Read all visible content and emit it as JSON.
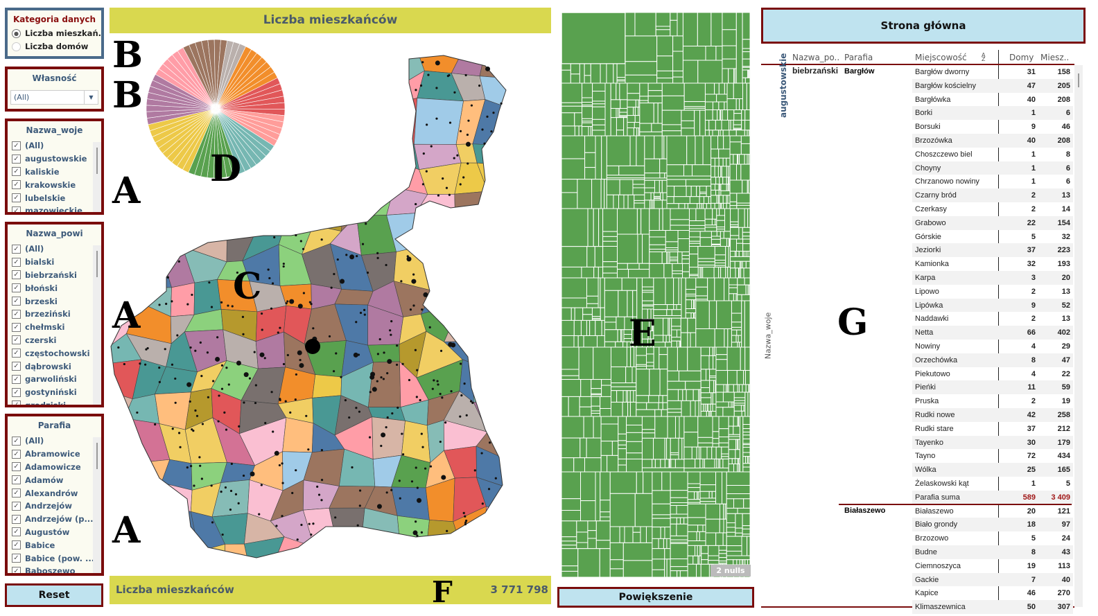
{
  "annotations": {
    "a1": "A",
    "a2": "A",
    "a3": "A",
    "b1": "B",
    "b2": "B",
    "c": "C",
    "d": "D",
    "e": "E",
    "f": "F",
    "g": "G"
  },
  "kategoria": {
    "title": "Kategoria danych",
    "options": [
      "Liczba mieszkań...",
      "Liczba domów"
    ],
    "selected": 0
  },
  "wlasnosc": {
    "title": "Własność",
    "value": "(All)"
  },
  "woje": {
    "title": "Nazwa_woje",
    "items": [
      "(All)",
      "augustowskie",
      "kaliskie",
      "krakowskie",
      "lubelskie",
      "mazowieckie"
    ]
  },
  "powi": {
    "title": "Nazwa_powi",
    "items": [
      "(All)",
      "bialski",
      "biebrzański",
      "błoński",
      "brzeski",
      "brzeziński",
      "chełmski",
      "czerski",
      "częstochowski",
      "dąbrowski",
      "garwoliński",
      "gostyniński",
      "grodziski"
    ]
  },
  "parafia": {
    "title": "Parafia",
    "items": [
      "(All)",
      "Abramowice",
      "Adamowicze",
      "Adamów",
      "Alexandrów",
      "Andrzejów",
      "Andrzejów (p...",
      "Augustów",
      "Babice",
      "Babice (pow. ...",
      "Baboszewo"
    ]
  },
  "reset_label": "Reset",
  "center": {
    "title": "Liczba mieszkańców",
    "footer_label": "Liczba mieszkańców",
    "footer_value": "3 771 798"
  },
  "treemap": {
    "nulls": "2 nulls",
    "color": "#59a14f"
  },
  "zoom_label": "Powiększenie",
  "home_label": "Strona główna",
  "pie_colors": [
    "#f28e2b",
    "#e15759",
    "#ff9d9a",
    "#76b7b2",
    "#59a14f",
    "#edc948",
    "#b07aa1",
    "#ff9da7",
    "#9c755f",
    "#bab0ac"
  ],
  "table": {
    "headers": {
      "powi": "Nazwa_po..",
      "parafia": "Parafia",
      "miejsc": "Miejscowość",
      "domy": "Domy",
      "miesz": "Miesz.."
    },
    "row_axis": "Nazwa_woje",
    "woje": "augustowskie",
    "powi": "biebrzański",
    "groups": [
      {
        "parafia": "Bargłów",
        "rows": [
          [
            "Bargłów dworny",
            "31",
            "158"
          ],
          [
            "Bargłów kościelny",
            "47",
            "205"
          ],
          [
            "Bargłówka",
            "40",
            "208"
          ],
          [
            "Borki",
            "1",
            "6"
          ],
          [
            "Borsuki",
            "9",
            "46"
          ],
          [
            "Brzozówka",
            "40",
            "208"
          ],
          [
            "Choszczewo biel",
            "1",
            "8"
          ],
          [
            "Choyny",
            "1",
            "6"
          ],
          [
            "Chrzanowo nowiny",
            "1",
            "6"
          ],
          [
            "Czarny bród",
            "2",
            "13"
          ],
          [
            "Czerkasy",
            "2",
            "14"
          ],
          [
            "Grabowo",
            "22",
            "154"
          ],
          [
            "Górskie",
            "5",
            "32"
          ],
          [
            "Jeziorki",
            "37",
            "223"
          ],
          [
            "Kamionka",
            "32",
            "193"
          ],
          [
            "Karpa",
            "3",
            "20"
          ],
          [
            "Lipowo",
            "2",
            "13"
          ],
          [
            "Lipówka",
            "9",
            "52"
          ],
          [
            "Naddawki",
            "2",
            "13"
          ],
          [
            "Netta",
            "66",
            "402"
          ],
          [
            "Nowiny",
            "4",
            "29"
          ],
          [
            "Orzechówka",
            "8",
            "47"
          ],
          [
            "Piekutowo",
            "4",
            "22"
          ],
          [
            "Pieńki",
            "11",
            "59"
          ],
          [
            "Pruska",
            "2",
            "19"
          ],
          [
            "Rudki nowe",
            "42",
            "258"
          ],
          [
            "Rudki stare",
            "37",
            "212"
          ],
          [
            "Tayenko",
            "30",
            "179"
          ],
          [
            "Tayno",
            "72",
            "434"
          ],
          [
            "Wólka",
            "25",
            "165"
          ],
          [
            "Żelaskowski kąt",
            "1",
            "5"
          ]
        ],
        "total": [
          "Parafia suma",
          "589",
          "3 409"
        ]
      },
      {
        "parafia": "Białaszewo",
        "rows": [
          [
            "Białaszewo",
            "20",
            "121"
          ],
          [
            "Biało grondy",
            "18",
            "97"
          ],
          [
            "Brzozowo",
            "5",
            "24"
          ],
          [
            "Budne",
            "8",
            "43"
          ],
          [
            "Ciemnoszyca",
            "19",
            "113"
          ],
          [
            "Gackie",
            "7",
            "40"
          ],
          [
            "Kapice",
            "46",
            "270"
          ],
          [
            "Klimaszewnica",
            "50",
            "307"
          ]
        ]
      }
    ]
  }
}
